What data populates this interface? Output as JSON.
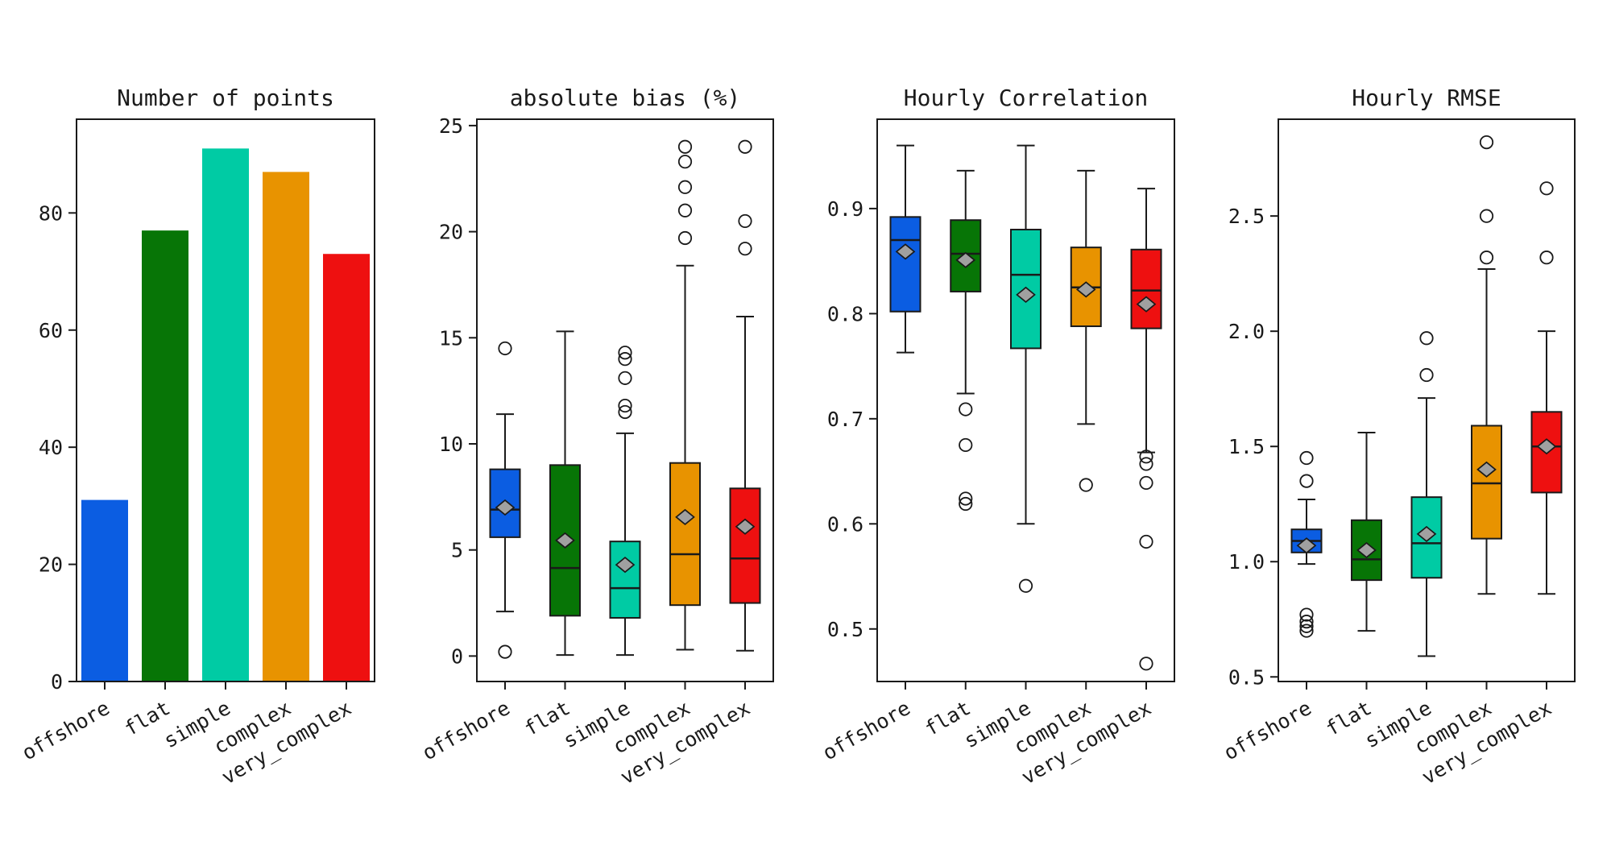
{
  "figure": {
    "background": "#ffffff"
  },
  "style": {
    "text_color": "#1a1a1a",
    "edge_color": "#1a1a1a",
    "mean_marker_fill": "#a0a0a0",
    "flier_fill": "none",
    "palette": [
      "#0b5de2",
      "#077506",
      "#00cba4",
      "#e89300",
      "#ee1010"
    ]
  },
  "chart_data": [
    {
      "type": "bar",
      "title": "Number of points",
      "categories": [
        "offshore",
        "flat",
        "simple",
        "complex",
        "very_complex"
      ],
      "values": [
        31,
        77,
        91,
        87,
        73
      ],
      "colors": [
        "#0b5de2",
        "#077506",
        "#00cba4",
        "#e89300",
        "#ee1010"
      ],
      "ylim": [
        0,
        96
      ],
      "yticks": [
        0,
        20,
        40,
        60,
        80
      ],
      "ytick_labels": [
        "0",
        "20",
        "40",
        "60",
        "80"
      ],
      "xlabel": "",
      "ylabel": "",
      "grid": false,
      "legend": null
    },
    {
      "type": "box",
      "title": "absolute bias (%)",
      "categories": [
        "offshore",
        "flat",
        "simple",
        "complex",
        "very_complex"
      ],
      "colors": [
        "#0b5de2",
        "#077506",
        "#00cba4",
        "#e89300",
        "#ee1010"
      ],
      "ylim": [
        -1.2,
        25.3
      ],
      "yticks": [
        0,
        5,
        10,
        15,
        20,
        25
      ],
      "ytick_labels": [
        "0",
        "5",
        "10",
        "15",
        "20",
        "25"
      ],
      "xlabel": "",
      "ylabel": "",
      "grid": false,
      "legend": null,
      "boxes": [
        {
          "whislo": 2.1,
          "q1": 5.6,
          "med": 6.9,
          "mean": 7.0,
          "q3": 8.8,
          "whishi": 11.4,
          "fliers": [
            14.5,
            0.2
          ]
        },
        {
          "whislo": 0.05,
          "q1": 1.9,
          "med": 4.15,
          "mean": 5.45,
          "q3": 9.0,
          "whishi": 15.3,
          "fliers": []
        },
        {
          "whislo": 0.05,
          "q1": 1.8,
          "med": 3.2,
          "mean": 4.3,
          "q3": 5.4,
          "whishi": 10.5,
          "fliers": [
            14.3,
            14.0,
            13.1,
            11.8,
            11.5
          ]
        },
        {
          "whislo": 0.3,
          "q1": 2.4,
          "med": 4.8,
          "mean": 6.55,
          "q3": 9.1,
          "whishi": 18.4,
          "fliers": [
            24.0,
            23.3,
            22.1,
            21.0,
            19.7
          ]
        },
        {
          "whislo": 0.25,
          "q1": 2.5,
          "med": 4.6,
          "mean": 6.1,
          "q3": 7.9,
          "whishi": 16.0,
          "fliers": [
            24.0,
            20.5,
            19.2
          ]
        }
      ]
    },
    {
      "type": "box",
      "title": "Hourly Correlation",
      "categories": [
        "offshore",
        "flat",
        "simple",
        "complex",
        "very_complex"
      ],
      "colors": [
        "#0b5de2",
        "#077506",
        "#00cba4",
        "#e89300",
        "#ee1010"
      ],
      "ylim": [
        0.45,
        0.985
      ],
      "yticks": [
        0.5,
        0.6,
        0.7,
        0.8,
        0.9
      ],
      "ytick_labels": [
        "0.5",
        "0.6",
        "0.7",
        "0.8",
        "0.9"
      ],
      "xlabel": "",
      "ylabel": "",
      "grid": false,
      "legend": null,
      "boxes": [
        {
          "whislo": 0.763,
          "q1": 0.802,
          "med": 0.87,
          "mean": 0.859,
          "q3": 0.892,
          "whishi": 0.96,
          "fliers": []
        },
        {
          "whislo": 0.724,
          "q1": 0.821,
          "med": 0.857,
          "mean": 0.851,
          "q3": 0.889,
          "whishi": 0.936,
          "fliers": [
            0.709,
            0.675,
            0.624,
            0.619
          ]
        },
        {
          "whislo": 0.6,
          "q1": 0.767,
          "med": 0.837,
          "mean": 0.818,
          "q3": 0.88,
          "whishi": 0.96,
          "fliers": [
            0.541
          ]
        },
        {
          "whislo": 0.695,
          "q1": 0.788,
          "med": 0.825,
          "mean": 0.823,
          "q3": 0.863,
          "whishi": 0.936,
          "fliers": [
            0.637
          ]
        },
        {
          "whislo": 0.668,
          "q1": 0.786,
          "med": 0.822,
          "mean": 0.809,
          "q3": 0.861,
          "whishi": 0.919,
          "fliers": [
            0.664,
            0.657,
            0.639,
            0.583,
            0.467
          ]
        }
      ]
    },
    {
      "type": "box",
      "title": "Hourly RMSE",
      "categories": [
        "offshore",
        "flat",
        "simple",
        "complex",
        "very_complex"
      ],
      "colors": [
        "#0b5de2",
        "#077506",
        "#00cba4",
        "#e89300",
        "#ee1010"
      ],
      "ylim": [
        0.48,
        2.92
      ],
      "yticks": [
        0.5,
        1.0,
        1.5,
        2.0,
        2.5
      ],
      "ytick_labels": [
        "0.5",
        "1.0",
        "1.5",
        "2.0",
        "2.5"
      ],
      "xlabel": "",
      "ylabel": "",
      "grid": false,
      "legend": null,
      "boxes": [
        {
          "whislo": 0.99,
          "q1": 1.04,
          "med": 1.09,
          "mean": 1.07,
          "q3": 1.14,
          "whishi": 1.27,
          "fliers": [
            1.45,
            1.35,
            0.77,
            0.74,
            0.72,
            0.7
          ]
        },
        {
          "whislo": 0.7,
          "q1": 0.92,
          "med": 1.01,
          "mean": 1.05,
          "q3": 1.18,
          "whishi": 1.56,
          "fliers": []
        },
        {
          "whislo": 0.59,
          "q1": 0.93,
          "med": 1.08,
          "mean": 1.12,
          "q3": 1.28,
          "whishi": 1.71,
          "fliers": [
            1.97,
            1.81
          ]
        },
        {
          "whislo": 0.86,
          "q1": 1.1,
          "med": 1.34,
          "mean": 1.4,
          "q3": 1.59,
          "whishi": 2.27,
          "fliers": [
            2.82,
            2.5,
            2.32
          ]
        },
        {
          "whislo": 0.86,
          "q1": 1.3,
          "med": 1.5,
          "mean": 1.5,
          "q3": 1.65,
          "whishi": 2.0,
          "fliers": [
            2.62,
            2.32
          ]
        }
      ]
    }
  ]
}
